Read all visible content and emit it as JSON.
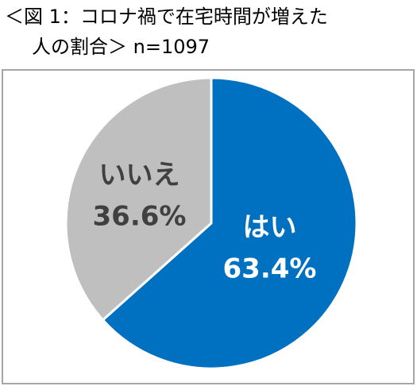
{
  "chart_data": {
    "type": "pie",
    "title": [
      "＜図 1：コロナ禍で在宅時間が増えた",
      "人の割合＞ n=1097"
    ],
    "categories": [
      "はい",
      "いいえ"
    ],
    "values": [
      63.4,
      36.6
    ],
    "value_labels": [
      "63.4%",
      "36.6%"
    ],
    "colors": [
      "#0070c0",
      "#bfbfbf"
    ],
    "label_colors": [
      "#ffffff",
      "#404040"
    ]
  }
}
